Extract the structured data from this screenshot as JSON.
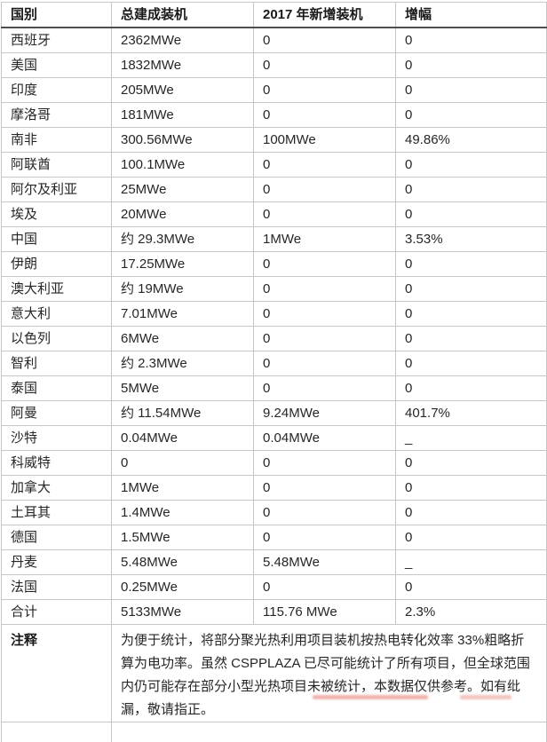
{
  "chart_data": {
    "type": "table",
    "columns": [
      "国别",
      "总建成装机",
      "2017 年新增装机",
      "增幅"
    ],
    "rows": [
      [
        "西班牙",
        "2362MWe",
        "0",
        "0"
      ],
      [
        "美国",
        "1832MWe",
        "0",
        "0"
      ],
      [
        "印度",
        "205MWe",
        "0",
        "0"
      ],
      [
        "摩洛哥",
        "181MWe",
        "0",
        "0"
      ],
      [
        "南非",
        "300.56MWe",
        "100MWe",
        "49.86%"
      ],
      [
        "阿联酋",
        "100.1MWe",
        "0",
        "0"
      ],
      [
        "阿尔及利亚",
        "25MWe",
        "0",
        "0"
      ],
      [
        "埃及",
        "20MWe",
        "0",
        "0"
      ],
      [
        "中国",
        "约 29.3MWe",
        "1MWe",
        "3.53%"
      ],
      [
        "伊朗",
        "17.25MWe",
        "0",
        "0"
      ],
      [
        "澳大利亚",
        "约 19MWe",
        "0",
        "0"
      ],
      [
        "意大利",
        "7.01MWe",
        "0",
        "0"
      ],
      [
        "以色列",
        "6MWe",
        "0",
        "0"
      ],
      [
        "智利",
        "约 2.3MWe",
        "0",
        "0"
      ],
      [
        "泰国",
        "5MWe",
        "0",
        "0"
      ],
      [
        "阿曼",
        "约 11.54MWe",
        "9.24MWe",
        "401.7%"
      ],
      [
        "沙特",
        "0.04MWe",
        "0.04MWe",
        "_"
      ],
      [
        "科威特",
        "0",
        "0",
        "0"
      ],
      [
        "加拿大",
        "1MWe",
        "0",
        "0"
      ],
      [
        "土耳其",
        "1.4MWe",
        "0",
        "0"
      ],
      [
        "德国",
        "1.5MWe",
        "0",
        "0"
      ],
      [
        "丹麦",
        "5.48MWe",
        "5.48MWe",
        "_"
      ],
      [
        "法国",
        "0.25MWe",
        "0",
        "0"
      ],
      [
        "合计",
        "5133MWe",
        "115.76 MWe",
        "2.3%"
      ]
    ],
    "note_label": "注释",
    "note_text": "为便于统计，将部分聚光热利用项目装机按热电转化效率 33%粗略折算为电功率。虽然 CSPPLAZA 已尽可能统计了所有项目，但全球范围内仍可能存在部分小型光热项目未被统计，本数据仅供参考。如有纰漏，敬请指正。"
  },
  "colors": {
    "border": "#c6c6c6",
    "header_rule": "#4f4f4f",
    "text": "#262626",
    "watermark_red": "#e4756b"
  }
}
